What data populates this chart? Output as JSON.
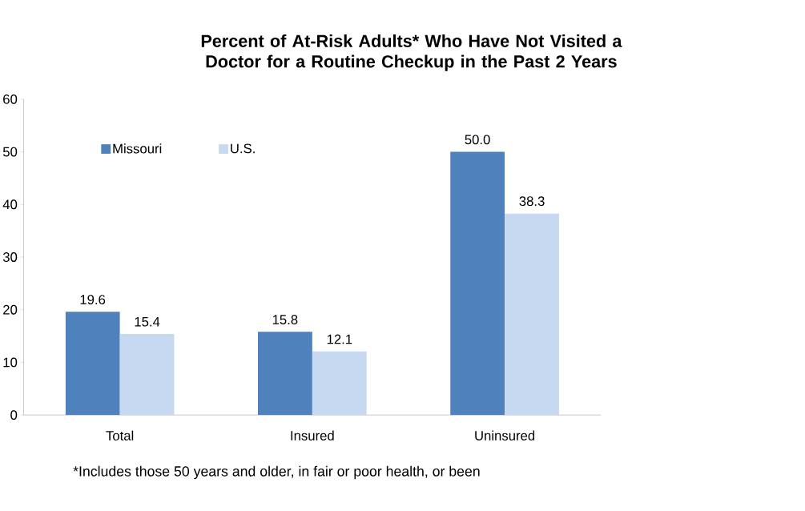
{
  "chart_data": {
    "type": "bar",
    "title": "Percent of At-Risk Adults* Who Have Not Visited a Doctor for a Routine Checkup in the Past 2 Years",
    "categories": [
      "Total",
      "Insured",
      "Uninsured"
    ],
    "series": [
      {
        "name": "Missouri",
        "color": "#4f81bd",
        "values": [
          19.6,
          15.8,
          50.0
        ],
        "value_labels": [
          "19.6",
          "15.8",
          "50.0"
        ]
      },
      {
        "name": "U.S.",
        "color": "#c6d9f1",
        "values": [
          15.4,
          12.1,
          38.3
        ],
        "value_labels": [
          "15.4",
          "12.1",
          "38.3"
        ]
      }
    ],
    "ylim": [
      0,
      60
    ],
    "yticks": [
      0,
      10,
      20,
      30,
      40,
      50,
      60
    ],
    "grid": false,
    "legend": "top left",
    "annotations": [
      "*Includes those 50 years and older, in fair or poor health, or been"
    ]
  }
}
